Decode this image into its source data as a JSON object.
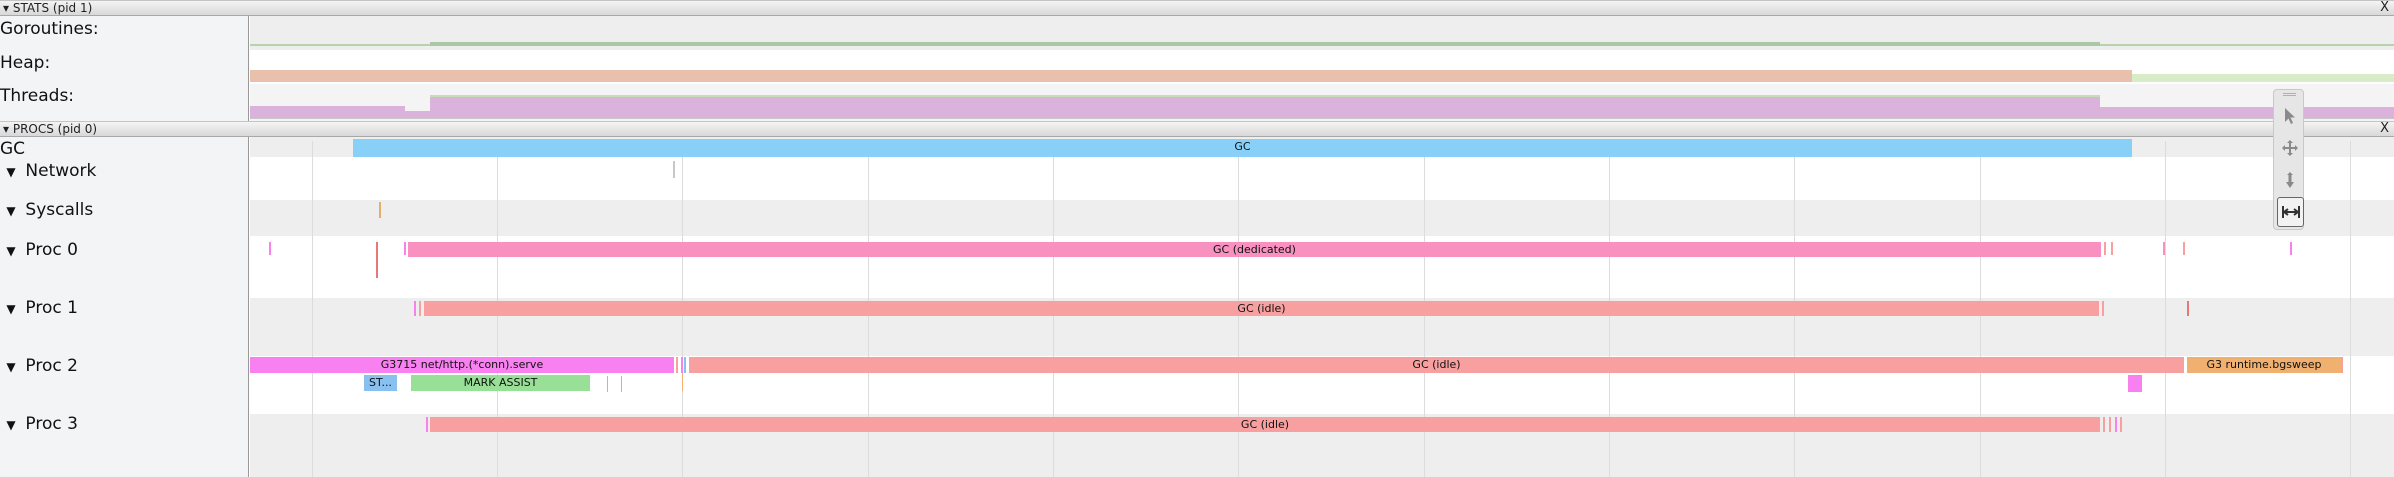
{
  "stats": {
    "header": "▾ STATS (pid 1)",
    "close": "X",
    "rows": [
      "Goroutines:",
      "Heap:",
      "Threads:"
    ]
  },
  "procs": {
    "header": "▾ PROCS (pid 0)",
    "close": "X",
    "gc_label": "GC",
    "tracks": [
      {
        "arrow": "▼",
        "label": "Network"
      },
      {
        "arrow": "▼",
        "label": "Syscalls"
      },
      {
        "arrow": "▼",
        "label": "Proc 0"
      },
      {
        "arrow": "▼",
        "label": "Proc 1"
      },
      {
        "arrow": "▼",
        "label": "Proc 2"
      },
      {
        "arrow": "▼",
        "label": "Proc 3"
      }
    ],
    "slices": {
      "gc": "GC",
      "proc0_gc": "GC (dedicated)",
      "proc1_gc": "GC (idle)",
      "proc2_goroutine": "G3715 net/http.(*conn).serve",
      "proc2_gc": "GC (idle)",
      "proc2_bgsweep": "G3 runtime.bgsweep",
      "proc2_st": "ST...",
      "proc2_mark_assist": "MARK ASSIST",
      "proc3_gc": "GC (idle)"
    }
  },
  "colors": {
    "goroutines": "#aac8a4",
    "heap": "#e8c0ac",
    "threads": "#dab2dc",
    "gc": "#88d0f8",
    "gc_dedicated": "#f890c0",
    "gc_idle": "#f8a0a0",
    "goroutine": "#f880f0",
    "bgsweep": "#f0b070",
    "mark_assist": "#98e098",
    "syscall_st": "#88c0f0"
  },
  "toolbar": [
    "pointer-icon",
    "pan-icon",
    "zoom-icon",
    "timing-icon"
  ]
}
